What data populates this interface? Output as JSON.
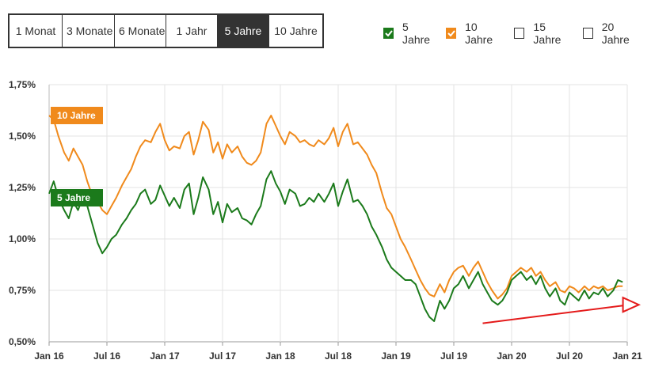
{
  "range_buttons": [
    {
      "label": "1 Monat"
    },
    {
      "label": "3 Monate"
    },
    {
      "label": "6 Monate"
    },
    {
      "label": "1 Jahr"
    },
    {
      "label": "5 Jahre",
      "active": true
    },
    {
      "label": "10 Jahre"
    }
  ],
  "legend": [
    {
      "label": "5 Jahre",
      "checked": true,
      "color": "#1b7a1b"
    },
    {
      "label": "10 Jahre",
      "checked": true,
      "color": "#f08a1c"
    },
    {
      "label": "15 Jahre",
      "checked": false
    },
    {
      "label": "20 Jahre",
      "checked": false
    }
  ],
  "chart_data": {
    "type": "line",
    "ylim": [
      0.5,
      1.75
    ],
    "yticks": [
      "0,50%",
      "0,75%",
      "1,00%",
      "1,25%",
      "1,50%",
      "1,75%"
    ],
    "xticks": [
      "Jan 16",
      "Jul 16",
      "Jan 17",
      "Jul 17",
      "Jan 18",
      "Jul 18",
      "Jan 19",
      "Jul 19",
      "Jan 20",
      "Jul 20",
      "Jan 21"
    ],
    "grid": true,
    "series": [
      {
        "name": "10 Jahre",
        "color": "#f08a1c",
        "flag_value": "1.60",
        "x": [
          2016.0,
          2016.04,
          2016.08,
          2016.13,
          2016.17,
          2016.21,
          2016.25,
          2016.29,
          2016.33,
          2016.38,
          2016.42,
          2016.46,
          2016.5,
          2016.54,
          2016.58,
          2016.63,
          2016.67,
          2016.71,
          2016.75,
          2016.79,
          2016.83,
          2016.88,
          2016.92,
          2016.96,
          2017.0,
          2017.04,
          2017.08,
          2017.13,
          2017.17,
          2017.21,
          2017.25,
          2017.29,
          2017.33,
          2017.38,
          2017.42,
          2017.46,
          2017.5,
          2017.54,
          2017.58,
          2017.63,
          2017.67,
          2017.71,
          2017.75,
          2017.79,
          2017.83,
          2017.88,
          2017.92,
          2017.96,
          2018.0,
          2018.04,
          2018.08,
          2018.13,
          2018.17,
          2018.21,
          2018.25,
          2018.29,
          2018.33,
          2018.38,
          2018.42,
          2018.46,
          2018.5,
          2018.54,
          2018.58,
          2018.63,
          2018.67,
          2018.71,
          2018.75,
          2018.79,
          2018.83,
          2018.88,
          2018.92,
          2018.96,
          2019.0,
          2019.04,
          2019.08,
          2019.13,
          2019.17,
          2019.21,
          2019.25,
          2019.29,
          2019.33,
          2019.38,
          2019.42,
          2019.46,
          2019.5,
          2019.54,
          2019.58,
          2019.63,
          2019.67,
          2019.71,
          2019.75,
          2019.79,
          2019.83,
          2019.88,
          2019.92,
          2019.96,
          2020.0,
          2020.04,
          2020.08,
          2020.13,
          2020.17,
          2020.21,
          2020.25,
          2020.29,
          2020.33,
          2020.38,
          2020.42,
          2020.46,
          2020.5,
          2020.54,
          2020.58,
          2020.63,
          2020.67,
          2020.71,
          2020.75,
          2020.79,
          2020.83,
          2020.88,
          2020.92,
          2020.96
        ],
        "values": [
          1.6,
          1.58,
          1.5,
          1.42,
          1.38,
          1.44,
          1.4,
          1.36,
          1.28,
          1.2,
          1.18,
          1.14,
          1.12,
          1.16,
          1.2,
          1.26,
          1.3,
          1.34,
          1.4,
          1.45,
          1.48,
          1.47,
          1.52,
          1.56,
          1.48,
          1.43,
          1.45,
          1.44,
          1.5,
          1.52,
          1.41,
          1.48,
          1.57,
          1.53,
          1.42,
          1.47,
          1.39,
          1.46,
          1.42,
          1.45,
          1.4,
          1.37,
          1.36,
          1.38,
          1.42,
          1.56,
          1.6,
          1.55,
          1.5,
          1.46,
          1.52,
          1.5,
          1.47,
          1.48,
          1.46,
          1.45,
          1.48,
          1.46,
          1.49,
          1.54,
          1.45,
          1.52,
          1.56,
          1.46,
          1.47,
          1.44,
          1.41,
          1.36,
          1.32,
          1.22,
          1.15,
          1.12,
          1.06,
          1.0,
          0.96,
          0.9,
          0.85,
          0.8,
          0.76,
          0.73,
          0.72,
          0.78,
          0.74,
          0.8,
          0.84,
          0.86,
          0.87,
          0.82,
          0.86,
          0.89,
          0.84,
          0.79,
          0.75,
          0.71,
          0.73,
          0.76,
          0.82,
          0.84,
          0.86,
          0.84,
          0.86,
          0.82,
          0.84,
          0.8,
          0.77,
          0.79,
          0.75,
          0.74,
          0.77,
          0.76,
          0.74,
          0.77,
          0.75,
          0.77,
          0.76,
          0.77,
          0.75,
          0.76,
          0.77,
          0.77
        ]
      },
      {
        "name": "5 Jahre",
        "color": "#1b7a1b",
        "flag_value": "1.20",
        "x": [
          2016.0,
          2016.04,
          2016.08,
          2016.13,
          2016.17,
          2016.21,
          2016.25,
          2016.29,
          2016.33,
          2016.38,
          2016.42,
          2016.46,
          2016.5,
          2016.54,
          2016.58,
          2016.63,
          2016.67,
          2016.71,
          2016.75,
          2016.79,
          2016.83,
          2016.88,
          2016.92,
          2016.96,
          2017.0,
          2017.04,
          2017.08,
          2017.13,
          2017.17,
          2017.21,
          2017.25,
          2017.29,
          2017.33,
          2017.38,
          2017.42,
          2017.46,
          2017.5,
          2017.54,
          2017.58,
          2017.63,
          2017.67,
          2017.71,
          2017.75,
          2017.79,
          2017.83,
          2017.88,
          2017.92,
          2017.96,
          2018.0,
          2018.04,
          2018.08,
          2018.13,
          2018.17,
          2018.21,
          2018.25,
          2018.29,
          2018.33,
          2018.38,
          2018.42,
          2018.46,
          2018.5,
          2018.54,
          2018.58,
          2018.63,
          2018.67,
          2018.71,
          2018.75,
          2018.79,
          2018.83,
          2018.88,
          2018.92,
          2018.96,
          2019.0,
          2019.04,
          2019.08,
          2019.13,
          2019.17,
          2019.21,
          2019.25,
          2019.29,
          2019.33,
          2019.38,
          2019.42,
          2019.46,
          2019.5,
          2019.54,
          2019.58,
          2019.63,
          2019.67,
          2019.71,
          2019.75,
          2019.79,
          2019.83,
          2019.88,
          2019.92,
          2019.96,
          2020.0,
          2020.04,
          2020.08,
          2020.13,
          2020.17,
          2020.21,
          2020.25,
          2020.29,
          2020.33,
          2020.38,
          2020.42,
          2020.46,
          2020.5,
          2020.54,
          2020.58,
          2020.63,
          2020.67,
          2020.71,
          2020.75,
          2020.79,
          2020.83,
          2020.88,
          2020.92,
          2020.96
        ],
        "values": [
          1.22,
          1.28,
          1.2,
          1.14,
          1.1,
          1.18,
          1.14,
          1.2,
          1.16,
          1.06,
          0.98,
          0.93,
          0.96,
          1.0,
          1.02,
          1.07,
          1.1,
          1.14,
          1.17,
          1.22,
          1.24,
          1.17,
          1.19,
          1.26,
          1.21,
          1.16,
          1.2,
          1.15,
          1.24,
          1.27,
          1.12,
          1.2,
          1.3,
          1.24,
          1.12,
          1.18,
          1.08,
          1.17,
          1.13,
          1.15,
          1.1,
          1.09,
          1.07,
          1.12,
          1.16,
          1.29,
          1.33,
          1.27,
          1.23,
          1.17,
          1.24,
          1.22,
          1.16,
          1.17,
          1.2,
          1.18,
          1.22,
          1.18,
          1.22,
          1.27,
          1.16,
          1.23,
          1.29,
          1.18,
          1.19,
          1.16,
          1.12,
          1.06,
          1.02,
          0.96,
          0.9,
          0.86,
          0.84,
          0.82,
          0.8,
          0.8,
          0.78,
          0.72,
          0.66,
          0.62,
          0.6,
          0.7,
          0.66,
          0.7,
          0.76,
          0.78,
          0.82,
          0.76,
          0.8,
          0.84,
          0.78,
          0.74,
          0.7,
          0.68,
          0.7,
          0.74,
          0.8,
          0.82,
          0.84,
          0.8,
          0.82,
          0.78,
          0.82,
          0.76,
          0.72,
          0.76,
          0.7,
          0.68,
          0.74,
          0.72,
          0.7,
          0.75,
          0.71,
          0.74,
          0.73,
          0.76,
          0.72,
          0.75,
          0.8,
          0.79
        ]
      }
    ],
    "annotation": {
      "type": "arrow",
      "color": "#e41a1a",
      "from": [
        2019.75,
        0.59
      ],
      "to": [
        2021.1,
        0.68
      ]
    }
  }
}
